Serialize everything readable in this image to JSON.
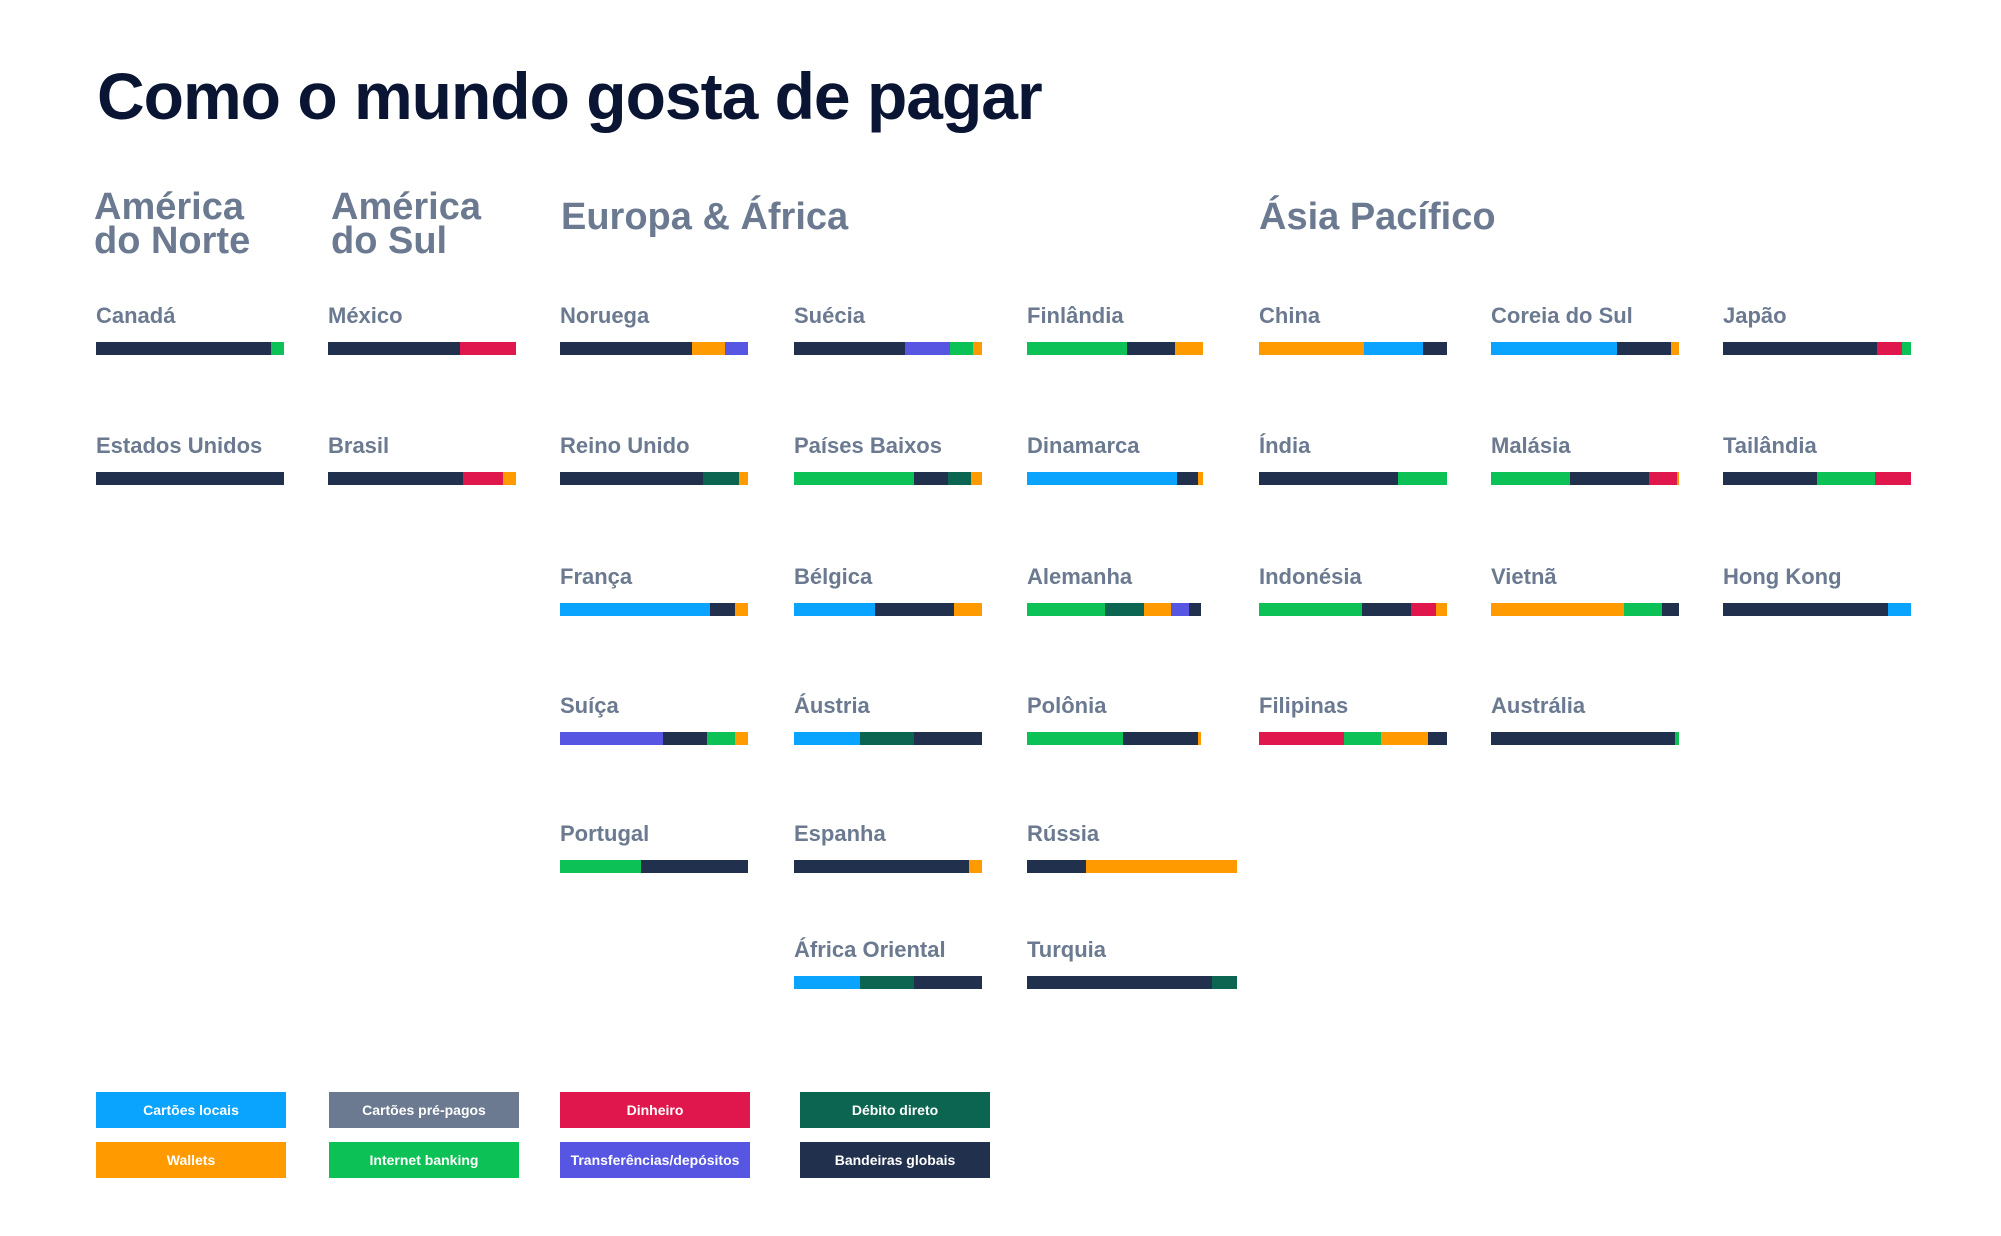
{
  "title": "Como o mundo gosta de pagar",
  "regions": [
    {
      "name": "América\ndo Norte"
    },
    {
      "name": "América\ndo Sul"
    },
    {
      "name": "Europa & África"
    },
    {
      "name": "Ásia Pacífico"
    }
  ],
  "legend": [
    {
      "label": "Cartões locais",
      "key": "cartoes_locais",
      "color": "#0aa4ff"
    },
    {
      "label": "Wallets",
      "key": "wallets",
      "color": "#ff9a00"
    },
    {
      "label": "Cartões pré-pagos",
      "key": "cartoes_pre_pagos",
      "color": "#6b7a90"
    },
    {
      "label": "Internet banking",
      "key": "internet_banking",
      "color": "#0cc155"
    },
    {
      "label": "Dinheiro",
      "key": "dinheiro",
      "color": "#e0174d"
    },
    {
      "label": "Transferências/depósitos",
      "key": "transferencias",
      "color": "#5656e3"
    },
    {
      "label": "Débito direto",
      "key": "debito_direto",
      "color": "#0b6550"
    },
    {
      "label": "Bandeiras globais",
      "key": "bandeiras_globais",
      "color": "#21304d"
    }
  ],
  "chart_data": {
    "type": "bar",
    "orientation": "horizontal-stacked-100",
    "title": "Como o mundo gosta de pagar",
    "countries": [
      {
        "name": "Canadá",
        "region": "América do Norte",
        "segments": [
          {
            "key": "bandeiras_globais",
            "value": 93
          },
          {
            "key": "internet_banking",
            "value": 7
          }
        ]
      },
      {
        "name": "Estados Unidos",
        "region": "América do Norte",
        "segments": [
          {
            "key": "bandeiras_globais",
            "value": 100
          }
        ]
      },
      {
        "name": "México",
        "region": "América do Sul",
        "segments": [
          {
            "key": "bandeiras_globais",
            "value": 70
          },
          {
            "key": "dinheiro",
            "value": 30
          }
        ]
      },
      {
        "name": "Brasil",
        "region": "América do Sul",
        "segments": [
          {
            "key": "bandeiras_globais",
            "value": 72
          },
          {
            "key": "dinheiro",
            "value": 21
          },
          {
            "key": "wallets",
            "value": 7
          }
        ]
      },
      {
        "name": "Noruega",
        "region": "Europa & África",
        "segments": [
          {
            "key": "bandeiras_globais",
            "value": 70
          },
          {
            "key": "wallets",
            "value": 18
          },
          {
            "key": "transferencias",
            "value": 12
          }
        ]
      },
      {
        "name": "Reino Unido",
        "region": "Europa & África",
        "segments": [
          {
            "key": "bandeiras_globais",
            "value": 76
          },
          {
            "key": "debito_direto",
            "value": 19
          },
          {
            "key": "wallets",
            "value": 5
          }
        ]
      },
      {
        "name": "França",
        "region": "Europa & África",
        "segments": [
          {
            "key": "cartoes_locais",
            "value": 80
          },
          {
            "key": "bandeiras_globais",
            "value": 13
          },
          {
            "key": "wallets",
            "value": 7
          }
        ]
      },
      {
        "name": "Suíça",
        "region": "Europa & África",
        "segments": [
          {
            "key": "transferencias",
            "value": 55
          },
          {
            "key": "bandeiras_globais",
            "value": 23
          },
          {
            "key": "internet_banking",
            "value": 15
          },
          {
            "key": "wallets",
            "value": 7
          }
        ]
      },
      {
        "name": "Portugal",
        "region": "Europa & África",
        "segments": [
          {
            "key": "internet_banking",
            "value": 43
          },
          {
            "key": "bandeiras_globais",
            "value": 57
          }
        ]
      },
      {
        "name": "Suécia",
        "region": "Europa & África",
        "segments": [
          {
            "key": "bandeiras_globais",
            "value": 59
          },
          {
            "key": "transferencias",
            "value": 24
          },
          {
            "key": "internet_banking",
            "value": 12
          },
          {
            "key": "wallets",
            "value": 5
          }
        ]
      },
      {
        "name": "Países Baixos",
        "region": "Europa & África",
        "segments": [
          {
            "key": "internet_banking",
            "value": 64
          },
          {
            "key": "bandeiras_globais",
            "value": 18
          },
          {
            "key": "debito_direto",
            "value": 12
          },
          {
            "key": "wallets",
            "value": 6
          }
        ]
      },
      {
        "name": "Bélgica",
        "region": "Europa & África",
        "segments": [
          {
            "key": "cartoes_locais",
            "value": 43
          },
          {
            "key": "bandeiras_globais",
            "value": 42
          },
          {
            "key": "wallets",
            "value": 15
          }
        ]
      },
      {
        "name": "Áustria",
        "region": "Europa & África",
        "segments": [
          {
            "key": "cartoes_locais",
            "value": 35
          },
          {
            "key": "debito_direto",
            "value": 29
          },
          {
            "key": "bandeiras_globais",
            "value": 36
          }
        ]
      },
      {
        "name": "Espanha",
        "region": "Europa & África",
        "segments": [
          {
            "key": "bandeiras_globais",
            "value": 93
          },
          {
            "key": "wallets",
            "value": 7
          }
        ]
      },
      {
        "name": "África Oriental",
        "region": "Europa & África",
        "segments": [
          {
            "key": "cartoes_locais",
            "value": 35
          },
          {
            "key": "debito_direto",
            "value": 29
          },
          {
            "key": "bandeiras_globais",
            "value": 36
          }
        ]
      },
      {
        "name": "Finlândia",
        "region": "Europa & África",
        "segments": [
          {
            "key": "internet_banking",
            "value": 57
          },
          {
            "key": "bandeiras_globais",
            "value": 27
          },
          {
            "key": "wallets",
            "value": 16
          }
        ]
      },
      {
        "name": "Dinamarca",
        "region": "Europa & África",
        "segments": [
          {
            "key": "cartoes_locais",
            "value": 85
          },
          {
            "key": "bandeiras_globais",
            "value": 12
          },
          {
            "key": "wallets",
            "value": 3
          }
        ]
      },
      {
        "name": "Alemanha",
        "region": "Europa & África",
        "segments": [
          {
            "key": "internet_banking",
            "value": 45
          },
          {
            "key": "debito_direto",
            "value": 22
          },
          {
            "key": "wallets",
            "value": 16
          },
          {
            "key": "transferencias",
            "value": 10
          },
          {
            "key": "bandeiras_globais",
            "value": 7
          }
        ]
      },
      {
        "name": "Polônia",
        "region": "Europa & África",
        "segments": [
          {
            "key": "internet_banking",
            "value": 55
          },
          {
            "key": "bandeiras_globais",
            "value": 43
          },
          {
            "key": "wallets",
            "value": 2
          }
        ]
      },
      {
        "name": "Rússia",
        "region": "Europa & África",
        "segments": [
          {
            "key": "bandeiras_globais",
            "value": 28
          },
          {
            "key": "wallets",
            "value": 72
          }
        ]
      },
      {
        "name": "Turquia",
        "region": "Europa & África",
        "segments": [
          {
            "key": "bandeiras_globais",
            "value": 88
          },
          {
            "key": "debito_direto",
            "value": 12
          }
        ]
      },
      {
        "name": "China",
        "region": "Ásia Pacífico",
        "segments": [
          {
            "key": "wallets",
            "value": 56
          },
          {
            "key": "cartoes_locais",
            "value": 31
          },
          {
            "key": "bandeiras_globais",
            "value": 13
          }
        ]
      },
      {
        "name": "Índia",
        "region": "Ásia Pacífico",
        "segments": [
          {
            "key": "bandeiras_globais",
            "value": 74
          },
          {
            "key": "internet_banking",
            "value": 26
          }
        ]
      },
      {
        "name": "Indonésia",
        "region": "Ásia Pacífico",
        "segments": [
          {
            "key": "internet_banking",
            "value": 55
          },
          {
            "key": "bandeiras_globais",
            "value": 26
          },
          {
            "key": "dinheiro",
            "value": 13
          },
          {
            "key": "wallets",
            "value": 6
          }
        ]
      },
      {
        "name": "Filipinas",
        "region": "Ásia Pacífico",
        "segments": [
          {
            "key": "dinheiro",
            "value": 45
          },
          {
            "key": "internet_banking",
            "value": 20
          },
          {
            "key": "wallets",
            "value": 25
          },
          {
            "key": "bandeiras_globais",
            "value": 10
          }
        ]
      },
      {
        "name": "Coreia do Sul",
        "region": "Ásia Pacífico",
        "segments": [
          {
            "key": "cartoes_locais",
            "value": 67
          },
          {
            "key": "bandeiras_globais",
            "value": 29
          },
          {
            "key": "wallets",
            "value": 4
          }
        ]
      },
      {
        "name": "Malásia",
        "region": "Ásia Pacífico",
        "segments": [
          {
            "key": "internet_banking",
            "value": 42
          },
          {
            "key": "bandeiras_globais",
            "value": 42
          },
          {
            "key": "dinheiro",
            "value": 15
          },
          {
            "key": "wallets",
            "value": 1
          }
        ]
      },
      {
        "name": "Vietnã",
        "region": "Ásia Pacífico",
        "segments": [
          {
            "key": "wallets",
            "value": 71
          },
          {
            "key": "internet_banking",
            "value": 20
          },
          {
            "key": "bandeiras_globais",
            "value": 9
          }
        ]
      },
      {
        "name": "Austrália",
        "region": "Ásia Pacífico",
        "segments": [
          {
            "key": "bandeiras_globais",
            "value": 98
          },
          {
            "key": "internet_banking",
            "value": 2
          }
        ]
      },
      {
        "name": "Japão",
        "region": "Ásia Pacífico",
        "segments": [
          {
            "key": "bandeiras_globais",
            "value": 82
          },
          {
            "key": "dinheiro",
            "value": 13
          },
          {
            "key": "internet_banking",
            "value": 5
          }
        ]
      },
      {
        "name": "Tailândia",
        "region": "Ásia Pacífico",
        "segments": [
          {
            "key": "bandeiras_globais",
            "value": 50
          },
          {
            "key": "internet_banking",
            "value": 31
          },
          {
            "key": "dinheiro",
            "value": 19
          }
        ]
      },
      {
        "name": "Hong Kong",
        "region": "Ásia Pacífico",
        "segments": [
          {
            "key": "bandeiras_globais",
            "value": 88
          },
          {
            "key": "cartoes_locais",
            "value": 12
          }
        ]
      }
    ]
  }
}
